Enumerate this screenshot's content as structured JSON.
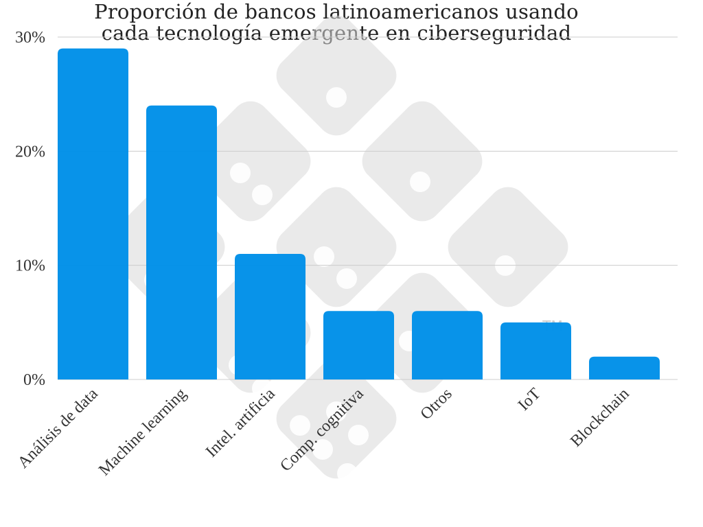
{
  "chart_data": {
    "type": "bar",
    "title_lines": [
      "Proporción de bancos latinoamericanos usando",
      "cada tecnología emergente en ciberseguridad"
    ],
    "categories": [
      "Análisis de data",
      "Machine learning",
      "Intel. artificia",
      "Comp. cognitiva",
      "Otros",
      "IoT",
      "Blockchain"
    ],
    "values": [
      29,
      24,
      11,
      6,
      6,
      5,
      2
    ],
    "ylim": [
      0,
      30
    ],
    "yticks": [
      0,
      10,
      20,
      30
    ],
    "ytick_labels": [
      "0%",
      "10%",
      "20%",
      "30%"
    ],
    "grid": true,
    "legend": "none",
    "bar_color": "#0090e8"
  },
  "watermark": {
    "icon": "dice-logo-icon",
    "mark": "TM",
    "color": "#d9d9d9"
  }
}
